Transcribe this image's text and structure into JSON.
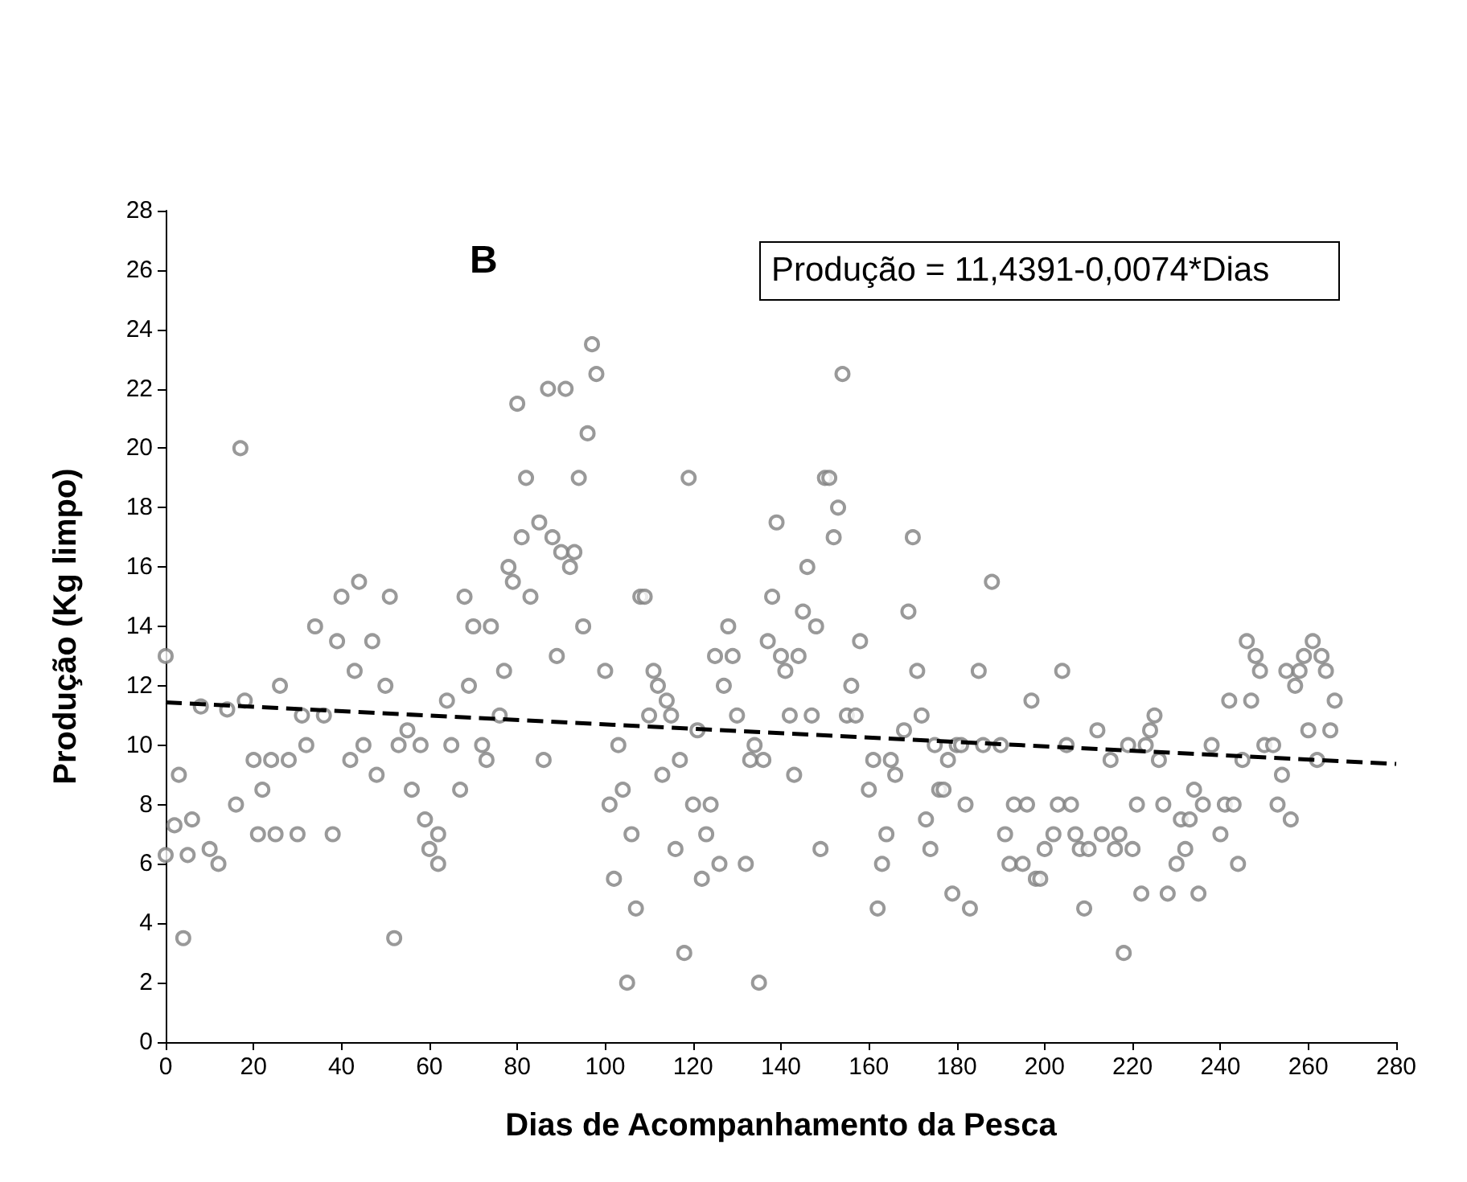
{
  "chart_data": {
    "type": "scatter",
    "xlabel": "Dias de Acompanhamento da Pesca",
    "ylabel": "Produção (Kg limpo)",
    "annotations": [
      "B",
      "Produção = 11,4391-0,0074*Dias"
    ],
    "xlim": [
      0,
      280
    ],
    "xticks": [
      0,
      20,
      40,
      60,
      80,
      100,
      120,
      140,
      160,
      180,
      200,
      220,
      240,
      260,
      280
    ],
    "ylim": [
      0,
      28
    ],
    "yticks": [
      0,
      2,
      4,
      6,
      8,
      10,
      12,
      14,
      16,
      18,
      20,
      22,
      24,
      26,
      28
    ],
    "grid": false,
    "series": [
      {
        "color": "#808080",
        "marker": "circle",
        "x": [
          0,
          0,
          2,
          3,
          4,
          5,
          6,
          8,
          10,
          12,
          14,
          16,
          17,
          18,
          20,
          21,
          22,
          24,
          25,
          26,
          28,
          30,
          31,
          32,
          34,
          36,
          38,
          39,
          40,
          42,
          43,
          44,
          45,
          47,
          48,
          50,
          51,
          52,
          53,
          55,
          56,
          58,
          59,
          60,
          62,
          62,
          64,
          65,
          67,
          68,
          69,
          70,
          72,
          73,
          74,
          76,
          77,
          78,
          79,
          80,
          81,
          82,
          83,
          85,
          86,
          87,
          88,
          89,
          90,
          91,
          92,
          93,
          94,
          95,
          96,
          97,
          98,
          100,
          101,
          102,
          103,
          104,
          105,
          106,
          107,
          108,
          109,
          110,
          111,
          112,
          113,
          114,
          115,
          116,
          117,
          118,
          119,
          120,
          121,
          122,
          123,
          124,
          125,
          126,
          127,
          128,
          129,
          130,
          132,
          133,
          134,
          135,
          136,
          137,
          138,
          139,
          140,
          141,
          142,
          143,
          144,
          145,
          146,
          147,
          148,
          149,
          150,
          151,
          152,
          153,
          154,
          155,
          156,
          157,
          158,
          160,
          161,
          162,
          163,
          164,
          165,
          166,
          168,
          169,
          170,
          171,
          172,
          173,
          174,
          175,
          176,
          177,
          178,
          179,
          180,
          181,
          182,
          183,
          185,
          186,
          188,
          190,
          191,
          192,
          193,
          195,
          196,
          197,
          198,
          199,
          200,
          202,
          203,
          204,
          205,
          206,
          207,
          208,
          209,
          210,
          212,
          213,
          215,
          216,
          217,
          218,
          219,
          220,
          221,
          222,
          223,
          224,
          225,
          226,
          227,
          228,
          230,
          231,
          232,
          233,
          234,
          235,
          236,
          238,
          240,
          241,
          242,
          243,
          244,
          245,
          246,
          247,
          248,
          249,
          250,
          252,
          253,
          254,
          255,
          256,
          257,
          258,
          259,
          260,
          261,
          262,
          263,
          264,
          265,
          266
        ],
        "values": [
          13,
          6.3,
          7.3,
          9,
          3.5,
          6.3,
          7.5,
          11.3,
          6.5,
          6,
          11.2,
          8,
          20,
          11.5,
          9.5,
          7,
          8.5,
          9.5,
          7,
          12,
          9.5,
          7,
          11,
          10,
          14,
          11,
          7,
          13.5,
          15,
          9.5,
          12.5,
          15.5,
          10,
          13.5,
          9,
          12,
          15,
          3.5,
          10,
          10.5,
          8.5,
          10,
          7.5,
          6.5,
          7,
          6,
          11.5,
          10,
          8.5,
          15,
          12,
          14,
          10,
          9.5,
          14,
          11,
          12.5,
          16,
          15.5,
          21.5,
          17,
          19,
          15,
          17.5,
          9.5,
          22,
          17,
          13,
          16.5,
          22,
          16,
          16.5,
          19,
          14,
          20.5,
          23.5,
          22.5,
          12.5,
          8,
          5.5,
          10,
          8.5,
          2,
          7,
          4.5,
          15,
          15,
          11,
          12.5,
          12,
          9,
          11.5,
          11,
          6.5,
          9.5,
          3,
          19,
          8,
          10.5,
          5.5,
          7,
          8,
          13,
          6,
          12,
          14,
          13,
          11,
          6,
          9.5,
          10,
          2,
          9.5,
          13.5,
          15,
          17.5,
          13,
          12.5,
          11,
          9,
          13,
          14.5,
          16,
          11,
          14,
          6.5,
          19,
          19,
          17,
          18,
          22.5,
          11,
          12,
          11,
          13.5,
          8.5,
          9.5,
          4.5,
          6,
          7,
          9.5,
          9,
          10.5,
          14.5,
          17,
          12.5,
          11,
          7.5,
          6.5,
          10,
          8.5,
          8.5,
          9.5,
          5,
          10,
          10,
          8,
          4.5,
          12.5,
          10,
          15.5,
          10,
          7,
          6,
          8,
          6,
          8,
          11.5,
          5.5,
          5.5,
          6.5,
          7,
          8,
          12.5,
          10,
          8,
          7,
          6.5,
          4.5,
          6.5,
          10.5,
          7,
          9.5,
          6.5,
          7,
          3,
          10,
          6.5,
          8,
          5,
          10,
          10.5,
          11,
          9.5,
          8,
          5,
          6,
          7.5,
          6.5,
          7.5,
          8.5,
          5,
          8,
          10,
          7,
          8,
          11.5,
          8,
          6,
          9.5,
          13.5,
          11.5,
          13,
          12.5,
          10,
          10,
          8,
          9,
          12.5,
          7.5,
          12,
          12.5,
          13,
          10.5,
          13.5,
          9.5,
          13,
          12.5,
          10.5,
          11.5
        ]
      },
      {
        "type": "line",
        "color": "#000000",
        "marker": "none",
        "line_style": "dashed",
        "x": [
          0,
          280
        ],
        "values": [
          11.44,
          9.37
        ]
      }
    ]
  }
}
